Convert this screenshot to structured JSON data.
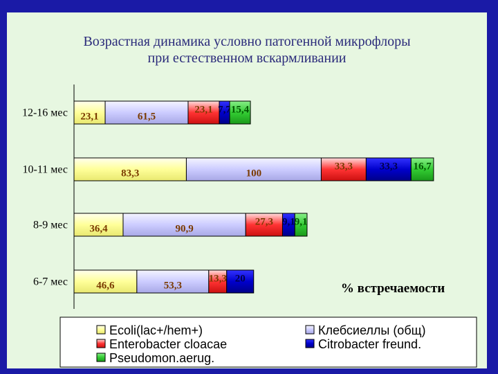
{
  "chart_data": {
    "type": "bar",
    "stacked": true,
    "orientation": "horizontal",
    "title": [
      "Возрастная динамика условно патогенной микрофлоры",
      "при естественном вскармливании"
    ],
    "xlabel": "% встречаемости",
    "categories": [
      "12-16 мес",
      "10-11 мес",
      "8-9 мес",
      "6-7 мес"
    ],
    "value_labels": [
      [
        "23,1",
        "61,5",
        "23,1",
        "7,7",
        "15,4"
      ],
      [
        "83,3",
        "100",
        "33,3",
        "33,3",
        "16,7"
      ],
      [
        "36,4",
        "90,9",
        "27,3",
        "9,1",
        "9,1"
      ],
      [
        "46,6",
        "53,3",
        "13,3",
        "20",
        ""
      ]
    ],
    "series": [
      {
        "name": "Ecoli(lac+/hem+)",
        "color": "#ffff99",
        "label_color": "#7a3a00",
        "values": [
          23.1,
          83.3,
          36.4,
          46.6
        ]
      },
      {
        "name": "Клебсиеллы (общ)",
        "color": "#ccccff",
        "label_color": "#7a3a00",
        "values": [
          61.5,
          100,
          90.9,
          53.3
        ]
      },
      {
        "name": "Enterobacter cloacae",
        "color": "#ff3333",
        "label_color": "#7a3a00",
        "values": [
          23.1,
          33.3,
          27.3,
          13.3
        ]
      },
      {
        "name": "Citrobacter freund.",
        "color": "#0000cc",
        "label_color": "#00004d",
        "values": [
          7.7,
          33.3,
          9.1,
          20
        ]
      },
      {
        "name": "Pseudomon.aerug.",
        "color": "#33cc33",
        "label_color": "#005500",
        "values": [
          15.4,
          16.7,
          9.1,
          0
        ]
      }
    ],
    "legend_position": "bottom",
    "grid": false
  }
}
